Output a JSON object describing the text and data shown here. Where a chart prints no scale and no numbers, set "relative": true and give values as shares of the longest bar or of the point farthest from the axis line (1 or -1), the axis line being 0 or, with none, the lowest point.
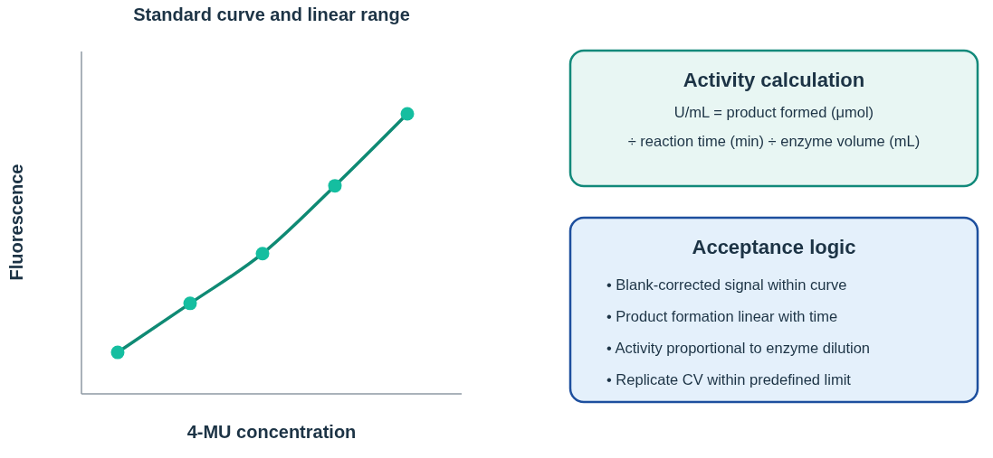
{
  "chart_data": [
    {
      "type": "line",
      "title": "Standard curve and linear range",
      "xlabel": "4-MU concentration",
      "ylabel": "Fluorescence",
      "relative": true,
      "categories": [
        null,
        null,
        null,
        null,
        null
      ],
      "series": [
        {
          "type": "line",
          "color": "#0f8a74",
          "marker": "circle",
          "values": [
            0.148,
            0.323,
            0.501,
            0.743,
            1
          ]
        }
      ]
    },
    {
      "type": "other",
      "title": "Activity calculation",
      "annotations": [
        "U/mL = product formed (μmol)",
        "÷ reaction time (min) ÷ enzyme volume (mL)"
      ]
    },
    {
      "type": "other",
      "title": "Acceptance logic",
      "annotations": [
        "• Blank-corrected signal within curve",
        "• Product formation linear with time",
        "• Activity proportional to enzyme dilution",
        "• Replicate CV within predefined limit"
      ]
    }
  ]
}
